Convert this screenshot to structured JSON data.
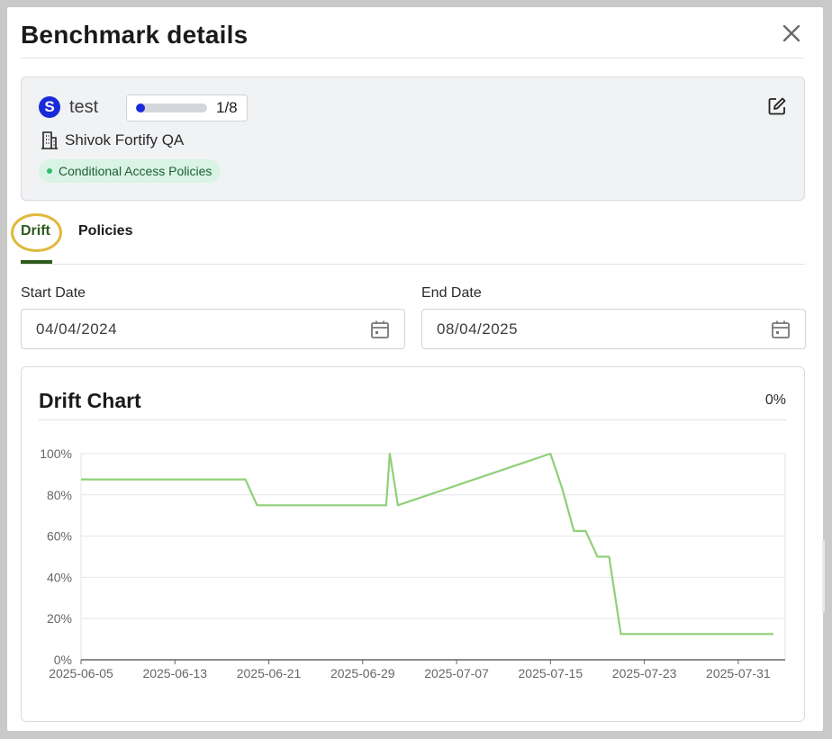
{
  "modal": {
    "title": "Benchmark details"
  },
  "benchmark": {
    "avatar_letter": "S",
    "name": "test",
    "progress_text": "1/8",
    "progress_fraction": 0.125,
    "tenant": "Shivok Fortify QA",
    "tag": "Conditional Access Policies"
  },
  "tabs": [
    {
      "label": "Drift",
      "active": true
    },
    {
      "label": "Policies",
      "active": false
    }
  ],
  "filters": {
    "start_label": "Start Date",
    "start_value": "04/04/2024",
    "end_label": "End Date",
    "end_value": "08/04/2025"
  },
  "chart": {
    "title": "Drift Chart",
    "percent": "0%"
  },
  "colors": {
    "accent_green": "#2e5a1e",
    "line_green": "#8fd07a",
    "brand_blue": "#1b2ad8",
    "tag_bg": "#d9f3e4",
    "highlight": "#e1b83a"
  },
  "icons": {
    "close": "close-icon",
    "edit": "edit-icon",
    "tenant": "building-icon",
    "calendar": "calendar-icon"
  },
  "chart_data": {
    "type": "line",
    "title": "Drift Chart",
    "xlabel": "",
    "ylabel": "",
    "ylim": [
      0,
      100
    ],
    "xlim": [
      "2025-06-05",
      "2025-08-04"
    ],
    "x_ticks": [
      "2025-06-05",
      "2025-06-13",
      "2025-06-21",
      "2025-06-29",
      "2025-07-07",
      "2025-07-15",
      "2025-07-23",
      "2025-07-31"
    ],
    "y_ticks": [
      "0%",
      "20%",
      "40%",
      "60%",
      "80%",
      "100%"
    ],
    "grid": true,
    "legend": "none",
    "series": [
      {
        "x": [
          "2025-06-05",
          "2025-06-19",
          "2025-06-20",
          "2025-07-01",
          "2025-07-01",
          "2025-07-02",
          "2025-07-15",
          "2025-07-16",
          "2025-07-17",
          "2025-07-18",
          "2025-07-19",
          "2025-07-20",
          "2025-07-21",
          "2025-08-03"
        ],
        "y": [
          87.5,
          87.5,
          75,
          75,
          100,
          75,
          100,
          83,
          62.5,
          62.5,
          50,
          50,
          12.5,
          12.5
        ]
      }
    ]
  }
}
